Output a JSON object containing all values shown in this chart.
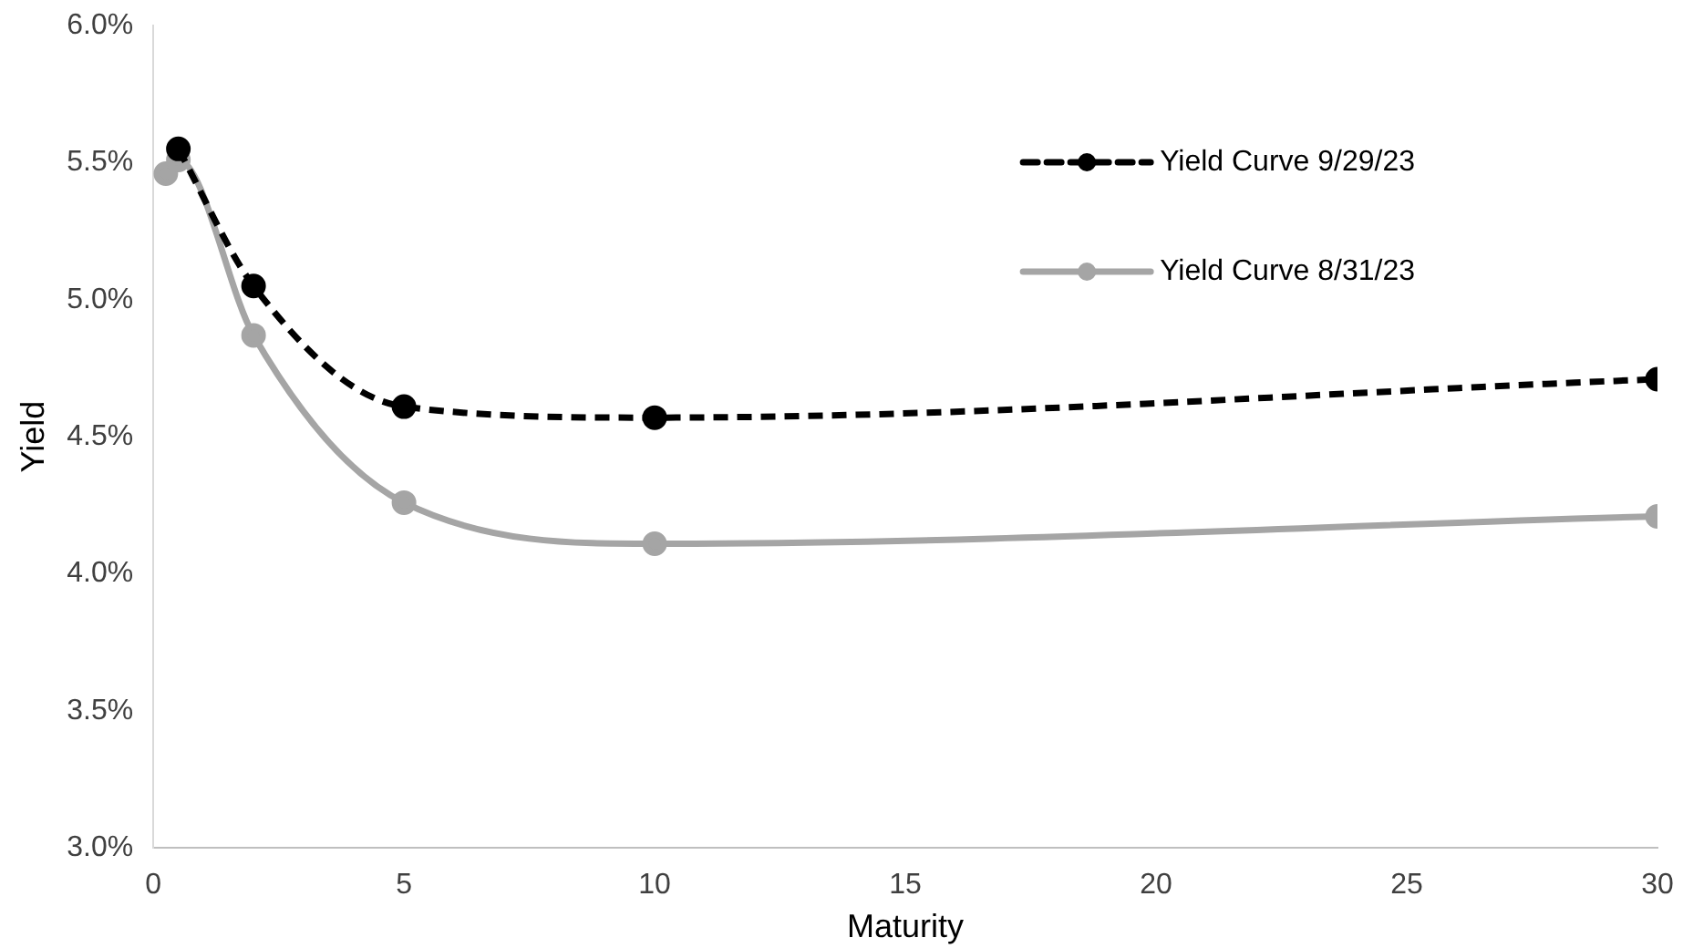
{
  "chart_data": {
    "type": "line",
    "xlabel": "Maturity",
    "ylabel": "Yield",
    "xlim": [
      0,
      30
    ],
    "xticks": [
      0,
      5,
      10,
      15,
      20,
      25,
      30
    ],
    "ylim": [
      3.0,
      6.0
    ],
    "yticks": [
      {
        "value": 3.0,
        "label": "3.0%"
      },
      {
        "value": 3.5,
        "label": "3.5%"
      },
      {
        "value": 4.0,
        "label": "4.0%"
      },
      {
        "value": 4.5,
        "label": "4.5%"
      },
      {
        "value": 5.0,
        "label": "5.0%"
      },
      {
        "value": 5.5,
        "label": "5.5%"
      },
      {
        "value": 6.0,
        "label": "6.0%"
      }
    ],
    "grid": false,
    "legend": "top right",
    "marker": "circle",
    "series": [
      {
        "name": "Yield Curve 9/29/23",
        "color": "#000000",
        "line_style": "dashed",
        "x": [
          0.5,
          2,
          5,
          10,
          30
        ],
        "values": [
          5.55,
          5.05,
          4.61,
          4.57,
          4.71
        ]
      },
      {
        "name": "Yield Curve 8/31/23",
        "color": "#a5a5a5",
        "line_style": "solid",
        "x": [
          0.25,
          0.5,
          2,
          5,
          10,
          30
        ],
        "values": [
          5.46,
          5.51,
          4.87,
          4.26,
          4.11,
          4.21
        ]
      }
    ]
  }
}
